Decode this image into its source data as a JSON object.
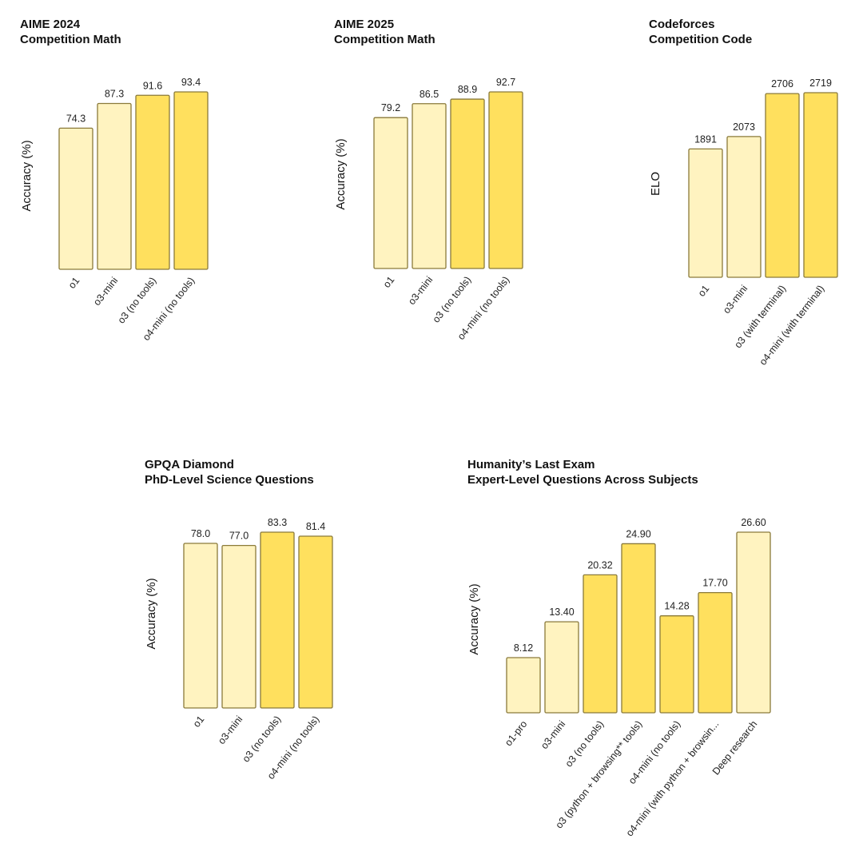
{
  "palette": {
    "light": "#fff3c0",
    "dark": "#ffe05e",
    "edge": "#8a7a3a"
  },
  "chart_data": [
    {
      "type": "bar",
      "title": "AIME 2024",
      "subtitle": "Competition Math",
      "ylabel": "Accuracy (%)",
      "categories": [
        "o1",
        "o3-mini",
        "o3 (no tools)",
        "o4-mini (no tools)"
      ],
      "values": [
        74.3,
        87.3,
        91.6,
        93.4
      ],
      "value_labels": [
        "74.3",
        "87.3",
        "91.6",
        "93.4"
      ],
      "highlight": [
        false,
        false,
        true,
        true
      ],
      "ylim": [
        0,
        100
      ]
    },
    {
      "type": "bar",
      "title": "AIME 2025",
      "subtitle": "Competition Math",
      "ylabel": "Accuracy (%)",
      "categories": [
        "o1",
        "o3-mini",
        "o3 (no tools)",
        "o4-mini (no tools)"
      ],
      "values": [
        79.2,
        86.5,
        88.9,
        92.7
      ],
      "value_labels": [
        "79.2",
        "86.5",
        "88.9",
        "92.7"
      ],
      "highlight": [
        false,
        false,
        true,
        true
      ],
      "ylim": [
        0,
        100
      ]
    },
    {
      "type": "bar",
      "title": "Codeforces",
      "subtitle": "Competition Code",
      "ylabel": "ELO",
      "categories": [
        "o1",
        "o3-mini",
        "o3 (with terminal)",
        "o4-mini (with terminal)"
      ],
      "values": [
        1891,
        2073,
        2706,
        2719
      ],
      "value_labels": [
        "1891",
        "2073",
        "2706",
        "2719"
      ],
      "highlight": [
        false,
        false,
        true,
        true
      ],
      "ylim": [
        0,
        2800
      ]
    },
    {
      "type": "bar",
      "title": "GPQA Diamond",
      "subtitle": "PhD-Level Science Questions",
      "ylabel": "Accuracy (%)",
      "categories": [
        "o1",
        "o3-mini",
        "o3 (no tools)",
        "o4-mini (no tools)"
      ],
      "values": [
        78.0,
        77.0,
        83.3,
        81.4
      ],
      "value_labels": [
        "78.0",
        "77.0",
        "83.3",
        "81.4"
      ],
      "highlight": [
        false,
        false,
        true,
        true
      ],
      "ylim": [
        0,
        100
      ]
    },
    {
      "type": "bar",
      "title": "Humanity’s Last Exam",
      "subtitle": "Expert-Level Questions Across Subjects",
      "ylabel": "Accuracy (%)",
      "categories": [
        "o1-pro",
        "o3-mini",
        "o3 (no tools)",
        "o3 (python + browsing** tools)",
        "o4-mini (no tools)",
        "o4-mini (with python + browsin...",
        "Deep research"
      ],
      "values": [
        8.12,
        13.4,
        20.32,
        24.9,
        14.28,
        17.7,
        26.6
      ],
      "value_labels": [
        "8.12",
        "13.40",
        "20.32",
        "24.90",
        "14.28",
        "17.70",
        "26.60"
      ],
      "highlight": [
        false,
        false,
        true,
        true,
        true,
        true,
        false
      ],
      "ylim": [
        0,
        28
      ]
    }
  ]
}
